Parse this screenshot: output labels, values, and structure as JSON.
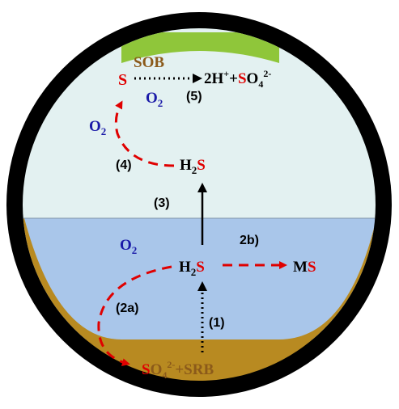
{
  "colors": {
    "ring": "#000000",
    "air": "#e3f1f1",
    "water": "#a9c6ea",
    "sediment": "#b88a21",
    "surface_film": "#8fc63a",
    "red": "#e00000",
    "blue": "#1a1aa8",
    "brown": "#8b5a1a",
    "black": "#000000"
  },
  "labels": {
    "sob": "SOB",
    "o2_top_O": "O",
    "o2_top_sub": "2",
    "step5": "(5)",
    "s_top": "S",
    "product_a": "2H",
    "product_plus_sup": "+",
    "product_b": "+",
    "product_s": "S",
    "product_o": "O",
    "product_sub4": "4",
    "product_sup": "2-",
    "o2_left_O": "O",
    "o2_left_sub": "2",
    "step4": "(4)",
    "h2s_top_H": "H",
    "h2s_top_sub": "2",
    "h2s_top_S": "S",
    "step3": "(3)",
    "o2_water_O": "O",
    "o2_water_sub": "2",
    "step2b": "2b)",
    "h2s_mid_H": "H",
    "h2s_mid_sub": "2",
    "h2s_mid_S": "S",
    "ms_M": "M",
    "ms_S": "S",
    "step2a": "(2a)",
    "step1": "(1)",
    "so4_S": "S",
    "so4_O": "O",
    "so4_sub": "4",
    "so4_sup": "2-",
    "so4_srb": "+SRB"
  }
}
